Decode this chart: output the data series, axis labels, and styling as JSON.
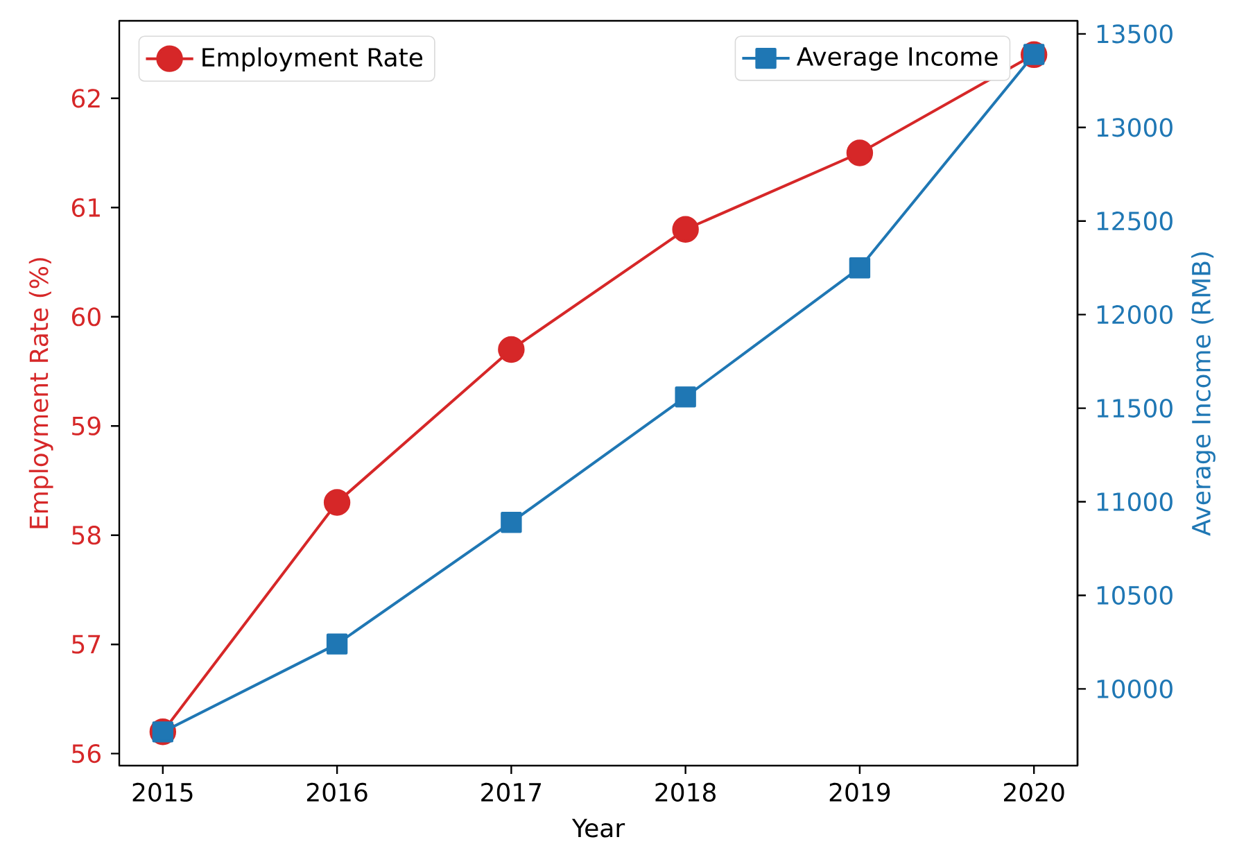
{
  "chart_data": {
    "type": "line",
    "xlabel": "Year",
    "ylabel": "Employment Rate (%)",
    "y2label": "Average Income (RMB)",
    "x": [
      2015,
      2016,
      2017,
      2018,
      2019,
      2020
    ],
    "series": [
      {
        "name": "Employment Rate",
        "color": "#d62728",
        "values": [
          56.2,
          58.3,
          59.7,
          60.8,
          61.5,
          62.4
        ],
        "marker": "circle"
      },
      {
        "name": "Average Income",
        "color": "#1f77b4",
        "values": [
          9770,
          10240,
          10890,
          11560,
          12250,
          13390
        ],
        "marker": "square",
        "axis": "y2"
      }
    ],
    "xlim": [
      2014.75,
      2020.25
    ],
    "xticks": [
      2015,
      2016,
      2017,
      2018,
      2019,
      2020
    ],
    "ylim": [
      55.89,
      62.71
    ],
    "yticks": [
      56,
      57,
      58,
      59,
      60,
      61,
      62
    ],
    "y2lim": [
      9590,
      13570
    ],
    "y2ticks": [
      10000,
      10500,
      11000,
      11500,
      12000,
      12500,
      13000,
      13500
    ],
    "line_style": "solid",
    "legend": "top"
  }
}
